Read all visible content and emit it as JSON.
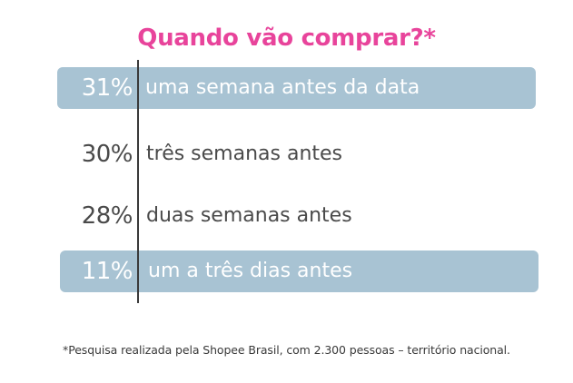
{
  "chart_data": {
    "type": "table",
    "title": "Quando vão comprar?*",
    "rows": [
      {
        "value": 31,
        "value_label": "31%",
        "label": "uma semana antes da data",
        "highlighted": true
      },
      {
        "value": 30,
        "value_label": "30%",
        "label": "três semanas antes",
        "highlighted": false
      },
      {
        "value": 28,
        "value_label": "28%",
        "label": "duas semanas antes",
        "highlighted": false
      },
      {
        "value": 11,
        "value_label": "11%",
        "label": "um a três dias antes",
        "highlighted": true
      }
    ],
    "footnote": "*Pesquisa realizada pela Shopee Brasil, com 2.300 pessoas – território nacional."
  },
  "colors": {
    "title": "#e8449b",
    "highlight_band": "#a8c3d3",
    "text": "#4a4a4a",
    "highlight_text": "#ffffff",
    "divider": "#3a3a3a"
  }
}
